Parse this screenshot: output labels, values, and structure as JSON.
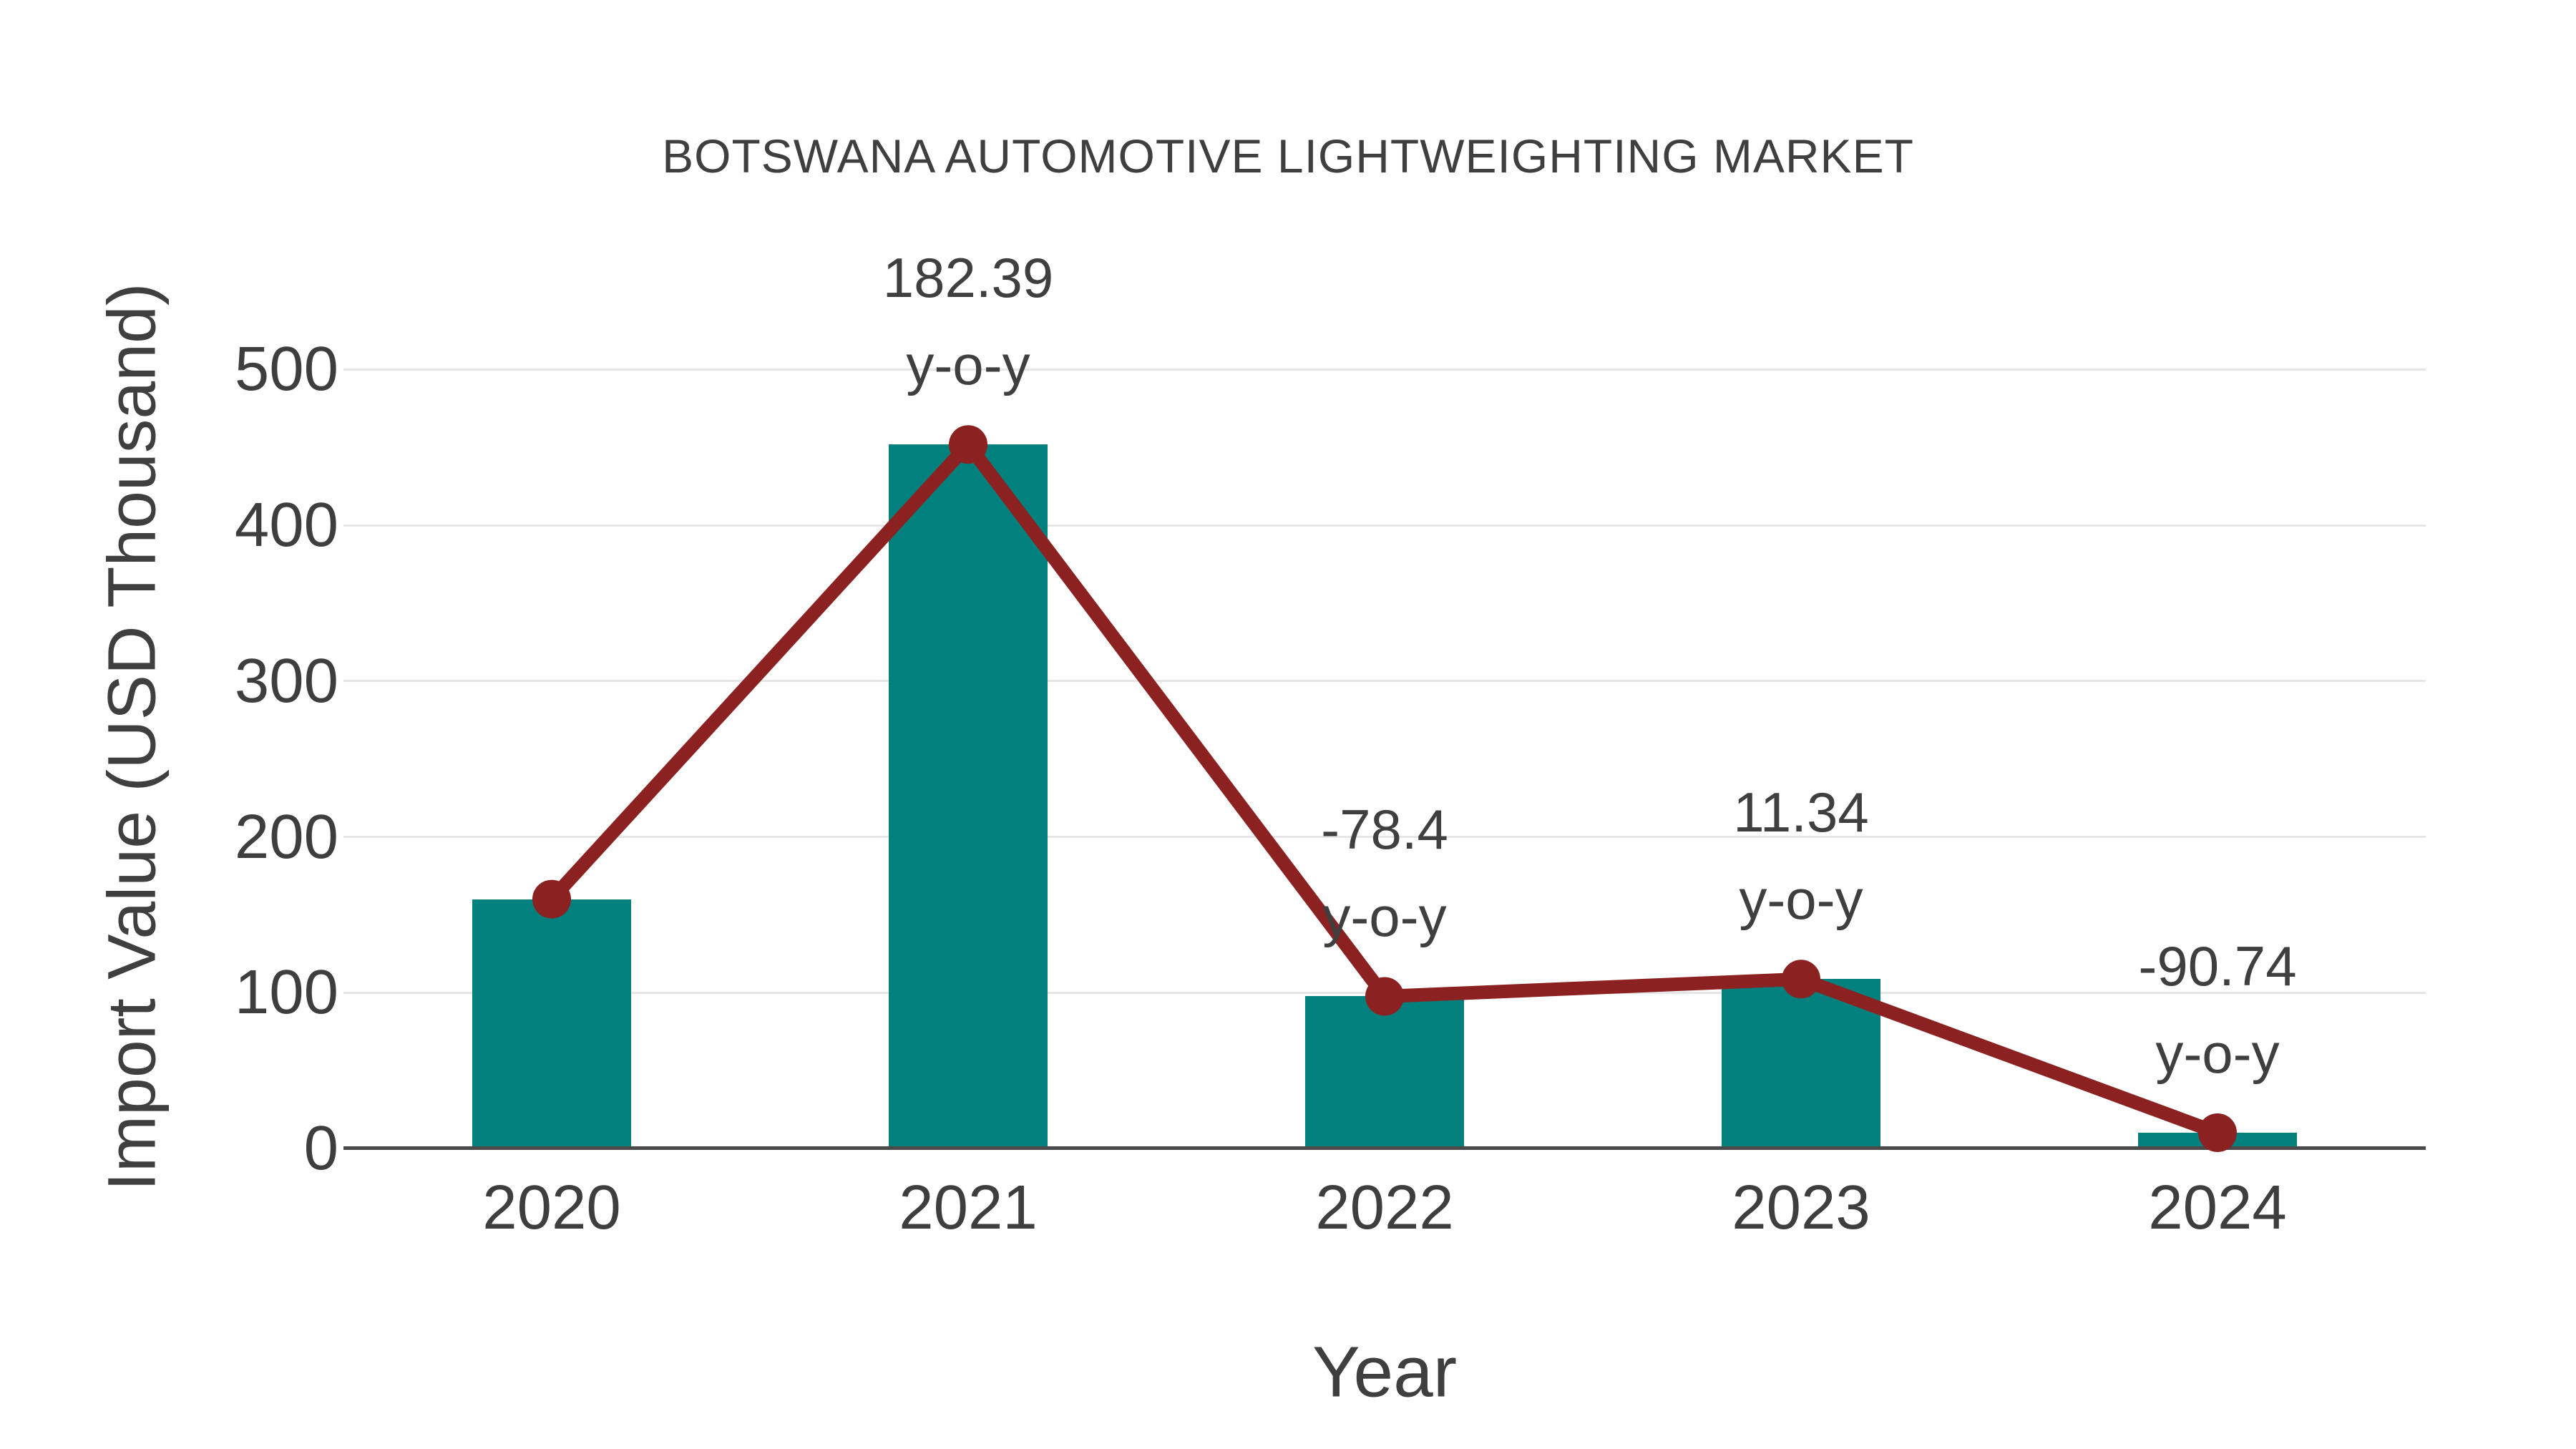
{
  "chart_data": {
    "type": "bar",
    "title": "BOTSWANA AUTOMOTIVE LIGHTWEIGHTING MARKET",
    "xlabel": "Year",
    "ylabel": "Import Value (USD Thousand)",
    "categories": [
      "2020",
      "2021",
      "2022",
      "2023",
      "2024"
    ],
    "series": [
      {
        "name": "Import Value",
        "type": "bar",
        "values": [
          160,
          451.8,
          97.6,
          108.7,
          10.1
        ]
      },
      {
        "name": "Import Value trend",
        "type": "line",
        "values": [
          160,
          451.8,
          97.6,
          108.7,
          10.1
        ]
      }
    ],
    "annotations": [
      {
        "category": "2021",
        "value_text": "182.39",
        "label_text": "y-o-y"
      },
      {
        "category": "2022",
        "value_text": "-78.4",
        "label_text": "y-o-y"
      },
      {
        "category": "2023",
        "value_text": "11.34",
        "label_text": "y-o-y"
      },
      {
        "category": "2024",
        "value_text": "-90.74",
        "label_text": "y-o-y"
      }
    ],
    "yticks": [
      0,
      100,
      200,
      300,
      400,
      500
    ],
    "ylim": [
      0,
      550
    ],
    "grid": true,
    "legend": false
  },
  "style": {
    "bar_color": "#02807D",
    "line_color": "#8B2120",
    "text_color": "#3F3F3F",
    "tick_text_color": "#3E3E3E",
    "gridline_color": "#E6E6E6",
    "axis_line_color": "#4A4A4A",
    "background_color": "#FFFFFF"
  }
}
